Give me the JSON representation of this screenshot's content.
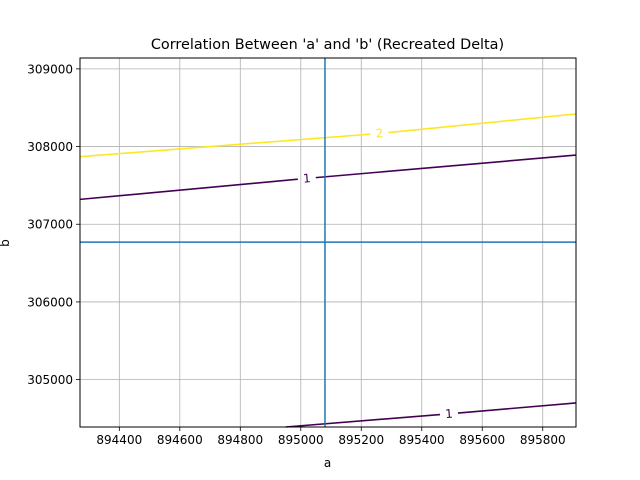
{
  "chart_data": {
    "type": "line",
    "title": "Correlation Between 'a' and 'b' (Recreated Delta)",
    "xlabel": "a",
    "ylabel": "b",
    "xlim": [
      894270,
      895910
    ],
    "ylim": [
      304390,
      309140
    ],
    "xticks": [
      894400,
      894600,
      894800,
      895000,
      895200,
      895400,
      895600,
      895800
    ],
    "xtick_labels": [
      "894400",
      "894600",
      "894800",
      "895000",
      "895200",
      "895400",
      "895600",
      "895800"
    ],
    "yticks": [
      305000,
      306000,
      307000,
      308000,
      309000
    ],
    "ytick_labels": [
      "305000",
      "306000",
      "307000",
      "308000",
      "309000"
    ],
    "grid": true,
    "reference_lines": {
      "vertical_x": 895080,
      "horizontal_y": 306770,
      "color": "#1f77b4"
    },
    "contours": [
      {
        "level_label": "2",
        "color": "#fde725",
        "x": [
          894270,
          895910
        ],
        "y": [
          307870,
          308420
        ],
        "label_at": [
          895260,
          308170
        ]
      },
      {
        "level_label": "1",
        "color": "#440154",
        "x": [
          894270,
          895910
        ],
        "y": [
          307320,
          307890
        ],
        "label_at": [
          895020,
          307590
        ]
      },
      {
        "level_label": "1",
        "color": "#440154",
        "x": [
          894950,
          895910
        ],
        "y": [
          304390,
          304700
        ],
        "label_at": [
          895490,
          304560
        ]
      }
    ]
  }
}
